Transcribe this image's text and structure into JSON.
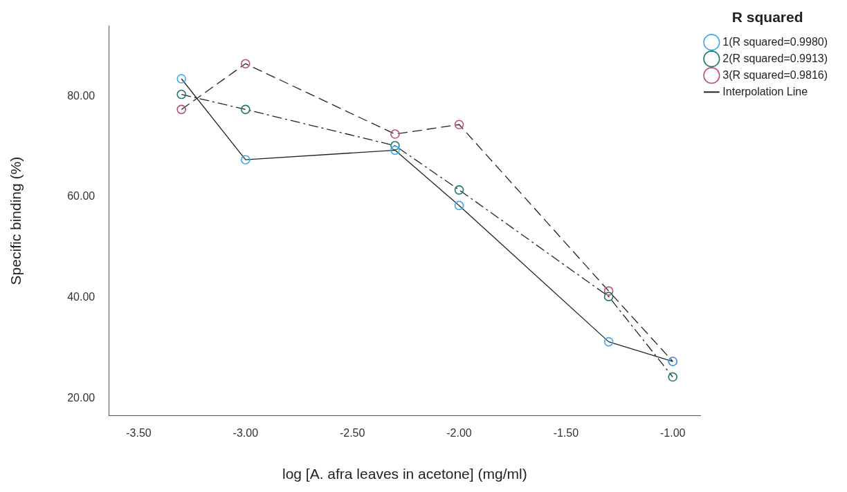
{
  "chart_data": {
    "type": "line",
    "xlabel": "log [A. afra leaves in acetone] (mg/ml)",
    "ylabel": "Specific binding (%)",
    "legend_title": "R squared",
    "annotations": [
      "Interpolation Line"
    ],
    "xlim": [
      -3.64,
      -0.87
    ],
    "ylim": [
      16.5,
      94
    ],
    "xticks": [
      {
        "value": -3.5,
        "label": "-3.50"
      },
      {
        "value": -3,
        "label": "-3.00"
      },
      {
        "value": -2.5,
        "label": "-2.50"
      },
      {
        "value": -2,
        "label": "-2.00"
      },
      {
        "value": -1.5,
        "label": "-1.50"
      },
      {
        "value": -1,
        "label": "-1.00"
      }
    ],
    "yticks": [
      {
        "value": 20,
        "label": "20.00"
      },
      {
        "value": 40,
        "label": "40.00"
      },
      {
        "value": 60,
        "label": "60.00"
      },
      {
        "value": 80,
        "label": "80.00"
      }
    ],
    "x": [
      -3.3,
      -3.0,
      -2.3,
      -2.0,
      -1.3,
      -1.0
    ],
    "grid": false,
    "legend": "right",
    "marker": "circle",
    "series": [
      {
        "name": "1(R squared=0.9980)",
        "color": "#3fa9ef",
        "line_style": "solid",
        "values": [
          83.5,
          67.4,
          69.3,
          58.3,
          31.2,
          27.3
        ]
      },
      {
        "name": "2(R squared=0.9913)",
        "color": "#1f7a6e",
        "line_style": "dashdot",
        "values": [
          80.4,
          77.4,
          70.2,
          61.4,
          40.2,
          24.2
        ]
      },
      {
        "name": "3(R squared=0.9816)",
        "color": "#c04a7c",
        "line_style": "dashed",
        "values": [
          77.4,
          86.5,
          72.5,
          74.4,
          41.3,
          27.3
        ]
      }
    ]
  }
}
